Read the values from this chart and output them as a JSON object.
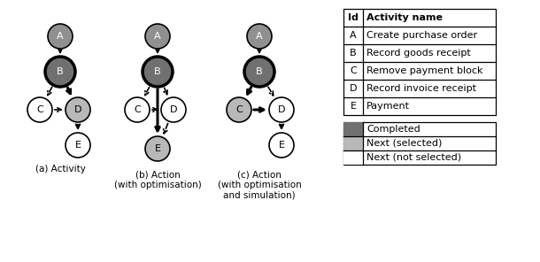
{
  "dark_gray": "#707070",
  "mid_gray": "#909090",
  "light_gray": "#b8b8b8",
  "white": "#ffffff",
  "black": "#000000",
  "activities": [
    "A",
    "B",
    "C",
    "D",
    "E"
  ],
  "activity_names": [
    "Create purchase order",
    "Record goods receipt",
    "Remove payment block",
    "Record invoice receipt",
    "Payment"
  ],
  "diagram_a_label": "(a) Activity",
  "diagram_b_label": "(b) Action\n(with optimisation)",
  "diagram_c_label": "(c) Action\n(with optimisation\nand simulation)",
  "legend_completed": "Completed",
  "legend_next_selected": "Next (selected)",
  "legend_next_not_selected": "Next (not selected)",
  "table_id_header": "Id",
  "table_name_header": "Activity name",
  "figw": 6.1,
  "figh": 2.96,
  "dpi": 100
}
